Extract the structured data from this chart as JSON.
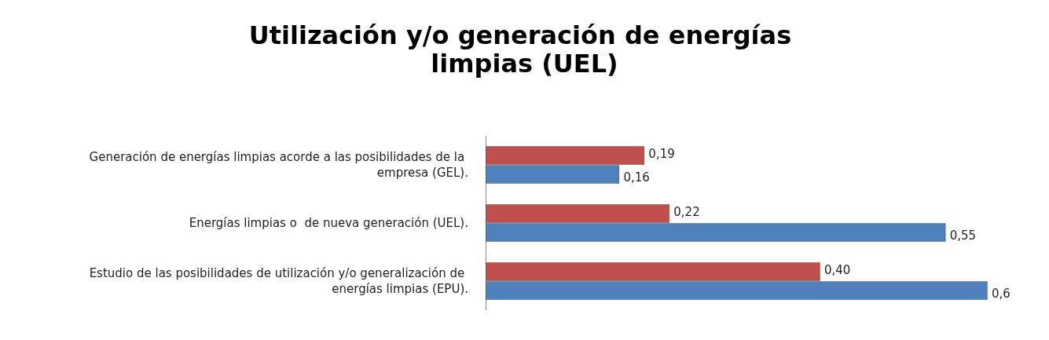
{
  "chart_data": {
    "type": "bar",
    "orientation": "horizontal",
    "title": "Utilización y/o generación de energías limpias (UEL)",
    "categories": [
      "Generación de energías limpias acorde a las posibilidades de la empresa (GEL).",
      "Energías limpias o  de nueva generación (UEL).",
      "Estudio de las posibilidades de utilización y/o generalización de energías limpias (EPU)."
    ],
    "series": [
      {
        "color": "#c0504d",
        "values": [
          0.19,
          0.22,
          0.4
        ],
        "value_labels": [
          "0,19",
          "0,22",
          "0,40"
        ]
      },
      {
        "color": "#4f81bd",
        "values": [
          0.16,
          0.55,
          0.6
        ],
        "value_labels": [
          "0,16",
          "0,55",
          "0,6"
        ]
      }
    ],
    "grid": false
  }
}
